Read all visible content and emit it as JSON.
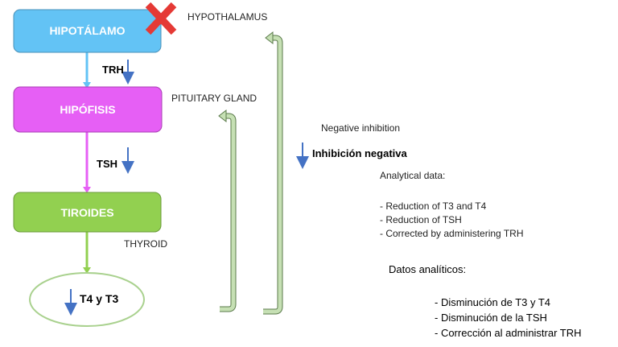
{
  "nodes": {
    "hypothalamus": {
      "label": "HIPOTÁLAMO",
      "english": "HYPOTHALAMUS",
      "color": "#63c3f5"
    },
    "pituitary": {
      "label": "HIPÓFISIS",
      "english": "PITUITARY GLAND",
      "color": "#e65ff5"
    },
    "thyroid": {
      "label": "TIROIDES",
      "english": "THYROID",
      "color": "#92d050"
    },
    "hormones": {
      "label": "T4 y T3"
    }
  },
  "edges": {
    "trh": {
      "label": "TRH"
    },
    "tsh": {
      "label": "TSH"
    }
  },
  "feedback": {
    "english": "Negative inhibition",
    "spanish": "Inhibición negativa",
    "arrow_color": "#c6e0b4"
  },
  "analytical_en": {
    "title": "Analytical data:",
    "items": [
      "- Reduction of T3 and T4",
      "- Reduction of TSH",
      "- Corrected by administering TRH"
    ]
  },
  "analytical_es": {
    "title": "Datos analíticos:",
    "items": [
      "- Disminución de T3 y T4",
      "- Disminución de la TSH",
      "- Corrección al administrar TRH"
    ]
  },
  "colors": {
    "down_arrow": "#4472c4",
    "cross": "#e53935"
  }
}
